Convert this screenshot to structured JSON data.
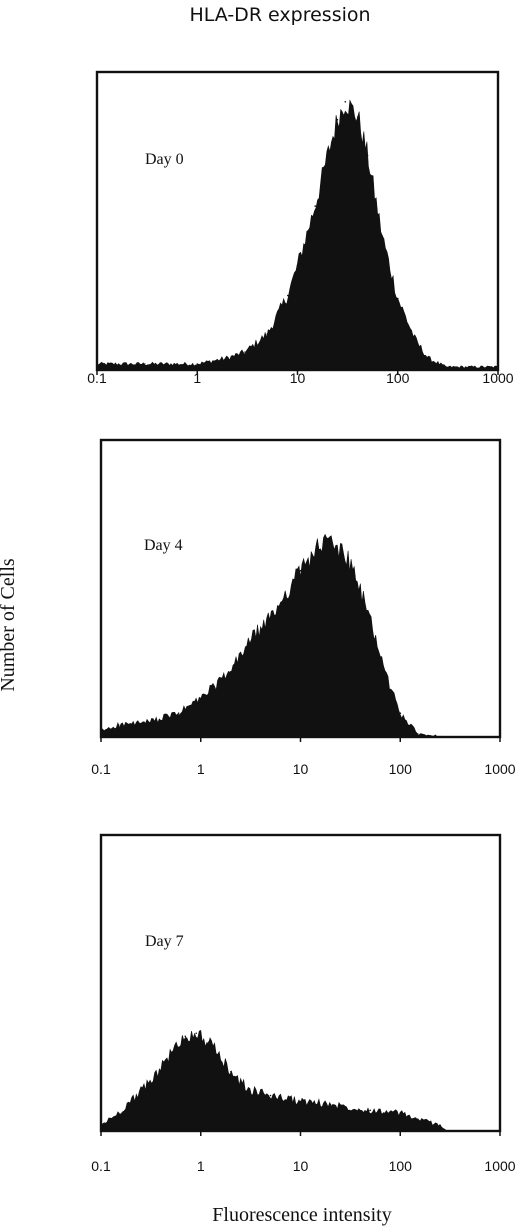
{
  "figure": {
    "title": "HLA-DR expression",
    "ylabel": "Number of Cells",
    "xlabel": "Fluorescence intensity"
  },
  "colors": {
    "fill": "#111111",
    "frame": "#111111",
    "background": "#ffffff"
  },
  "chart_data": [
    {
      "type": "area",
      "panel_label": "Day 0",
      "x_scale": "log",
      "xlim": [
        0.1,
        1000
      ],
      "x_ticks": [
        "0.1",
        "1",
        "10",
        "100",
        "1000"
      ],
      "grid": false,
      "x": [
        0.1,
        0.3,
        1,
        2,
        3,
        5,
        8,
        10,
        15,
        20,
        25,
        30,
        40,
        50,
        70,
        100,
        150,
        200,
        300
      ],
      "y": [
        0.02,
        0.02,
        0.02,
        0.04,
        0.06,
        0.12,
        0.25,
        0.35,
        0.55,
        0.72,
        0.84,
        0.9,
        0.85,
        0.72,
        0.45,
        0.24,
        0.1,
        0.04,
        0.01
      ]
    },
    {
      "type": "area",
      "panel_label": "Day 4",
      "x_scale": "log",
      "xlim": [
        0.1,
        1000
      ],
      "x_ticks": [
        "0.1",
        "1",
        "10",
        "100",
        "1000"
      ],
      "grid": false,
      "x": [
        0.1,
        0.15,
        0.3,
        0.6,
        1,
        2,
        3,
        5,
        7,
        10,
        15,
        20,
        30,
        50,
        70,
        100,
        150,
        300
      ],
      "y": [
        0.02,
        0.04,
        0.05,
        0.08,
        0.13,
        0.22,
        0.32,
        0.4,
        0.48,
        0.56,
        0.64,
        0.66,
        0.6,
        0.4,
        0.22,
        0.08,
        0.01,
        0.0
      ]
    },
    {
      "type": "area",
      "panel_label": "Day 7",
      "x_scale": "log",
      "xlim": [
        0.1,
        1000
      ],
      "x_ticks": [
        "0.1",
        "1",
        "10",
        "100",
        "1000"
      ],
      "grid": false,
      "x": [
        0.1,
        0.15,
        0.3,
        0.5,
        0.7,
        0.9,
        1.2,
        2,
        3,
        5,
        10,
        20,
        50,
        100,
        150,
        250,
        300
      ],
      "y": [
        0.02,
        0.06,
        0.16,
        0.26,
        0.32,
        0.33,
        0.3,
        0.2,
        0.14,
        0.12,
        0.1,
        0.09,
        0.07,
        0.06,
        0.04,
        0.02,
        0.0
      ]
    }
  ]
}
